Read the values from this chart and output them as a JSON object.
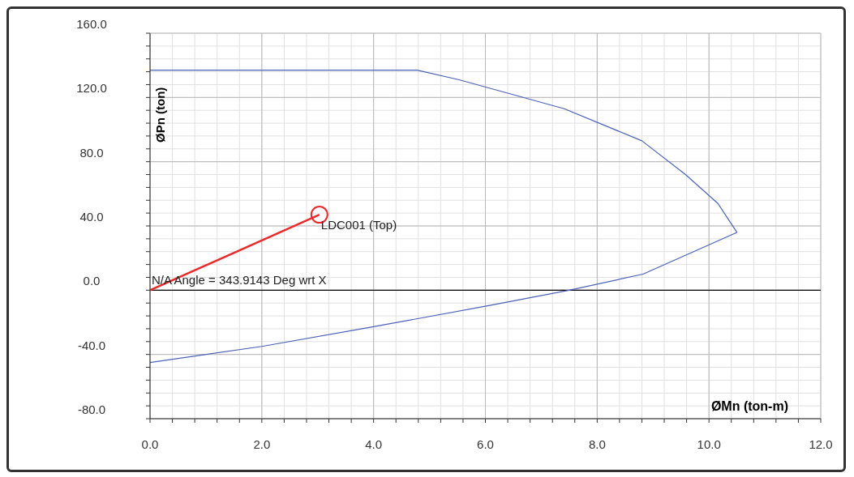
{
  "chart_data": {
    "type": "line",
    "xlabel": "ØMn (ton-m)",
    "ylabel": "ØPn (ton)",
    "series": [
      {
        "type": "line",
        "color": "#4a62b8",
        "x": [
          0,
          4.78,
          5.53,
          7.41,
          8.8,
          9.58,
          10.16,
          10.5,
          8.82,
          7.5,
          6,
          3.96,
          2,
          0
        ],
        "values": [
          137,
          137,
          131,
          113,
          93,
          72,
          54,
          36,
          10,
          0,
          -10,
          -23,
          -35,
          -45
        ]
      },
      {
        "type": "line",
        "color": "#e82a2a",
        "x": [
          0,
          3.03
        ],
        "values": [
          0,
          47
        ]
      },
      {
        "type": "scatter",
        "color": "#e82a2a",
        "marker": "circle",
        "x": [
          3.03
        ],
        "values": [
          47
        ]
      }
    ],
    "annotations": [
      {
        "text": "LDC001 (Top)",
        "x": 3.03,
        "y": 47
      },
      "N/A Angle = 343.9143 Deg wrt X"
    ],
    "ref_lines": [
      {
        "axis": "y",
        "value": 0,
        "color": "#000000"
      }
    ],
    "xlim": [
      0,
      12
    ],
    "ylim": [
      -80,
      160
    ],
    "xticks": [
      {
        "value": 0,
        "label": "0.0"
      },
      {
        "value": 0.4,
        "label": null
      },
      {
        "value": 0.8,
        "label": null
      },
      {
        "value": 1.2,
        "label": null
      },
      {
        "value": 1.6,
        "label": null
      },
      {
        "value": 2,
        "label": "2.0"
      },
      {
        "value": 2.4,
        "label": null
      },
      {
        "value": 2.8,
        "label": null
      },
      {
        "value": 3.2,
        "label": null
      },
      {
        "value": 3.6,
        "label": null
      },
      {
        "value": 4,
        "label": "4.0"
      },
      {
        "value": 4.4,
        "label": null
      },
      {
        "value": 4.8,
        "label": null
      },
      {
        "value": 5.2,
        "label": null
      },
      {
        "value": 5.6,
        "label": null
      },
      {
        "value": 6,
        "label": "6.0"
      },
      {
        "value": 6.4,
        "label": null
      },
      {
        "value": 6.8,
        "label": null
      },
      {
        "value": 7.2,
        "label": null
      },
      {
        "value": 7.6,
        "label": null
      },
      {
        "value": 8,
        "label": "8.0"
      },
      {
        "value": 8.4,
        "label": null
      },
      {
        "value": 8.8,
        "label": null
      },
      {
        "value": 9.2,
        "label": null
      },
      {
        "value": 9.6,
        "label": null
      },
      {
        "value": 10,
        "label": "10.0"
      },
      {
        "value": 10.4,
        "label": null
      },
      {
        "value": 10.8,
        "label": null
      },
      {
        "value": 11.2,
        "label": null
      },
      {
        "value": 11.6,
        "label": null
      },
      {
        "value": 12,
        "label": "12.0"
      }
    ],
    "yticks": [
      {
        "value": -80,
        "label": "-80.0"
      },
      {
        "value": -72,
        "label": null
      },
      {
        "value": -64,
        "label": null
      },
      {
        "value": -56,
        "label": null
      },
      {
        "value": -48,
        "label": null
      },
      {
        "value": -40,
        "label": "-40.0"
      },
      {
        "value": -32,
        "label": null
      },
      {
        "value": -24,
        "label": null
      },
      {
        "value": -16,
        "label": null
      },
      {
        "value": -8,
        "label": null
      },
      {
        "value": 0,
        "label": "0.0"
      },
      {
        "value": 8,
        "label": null
      },
      {
        "value": 16,
        "label": null
      },
      {
        "value": 24,
        "label": null
      },
      {
        "value": 32,
        "label": null
      },
      {
        "value": 40,
        "label": "40.0"
      },
      {
        "value": 48,
        "label": null
      },
      {
        "value": 56,
        "label": null
      },
      {
        "value": 64,
        "label": null
      },
      {
        "value": 72,
        "label": null
      },
      {
        "value": 80,
        "label": "80.0"
      },
      {
        "value": 88,
        "label": null
      },
      {
        "value": 96,
        "label": null
      },
      {
        "value": 104,
        "label": null
      },
      {
        "value": 112,
        "label": null
      },
      {
        "value": 120,
        "label": "120.0"
      },
      {
        "value": 128,
        "label": null
      },
      {
        "value": 136,
        "label": null
      },
      {
        "value": 144,
        "label": null
      },
      {
        "value": 152,
        "label": null
      },
      {
        "value": 160,
        "label": "160.0"
      }
    ],
    "grid": true
  }
}
